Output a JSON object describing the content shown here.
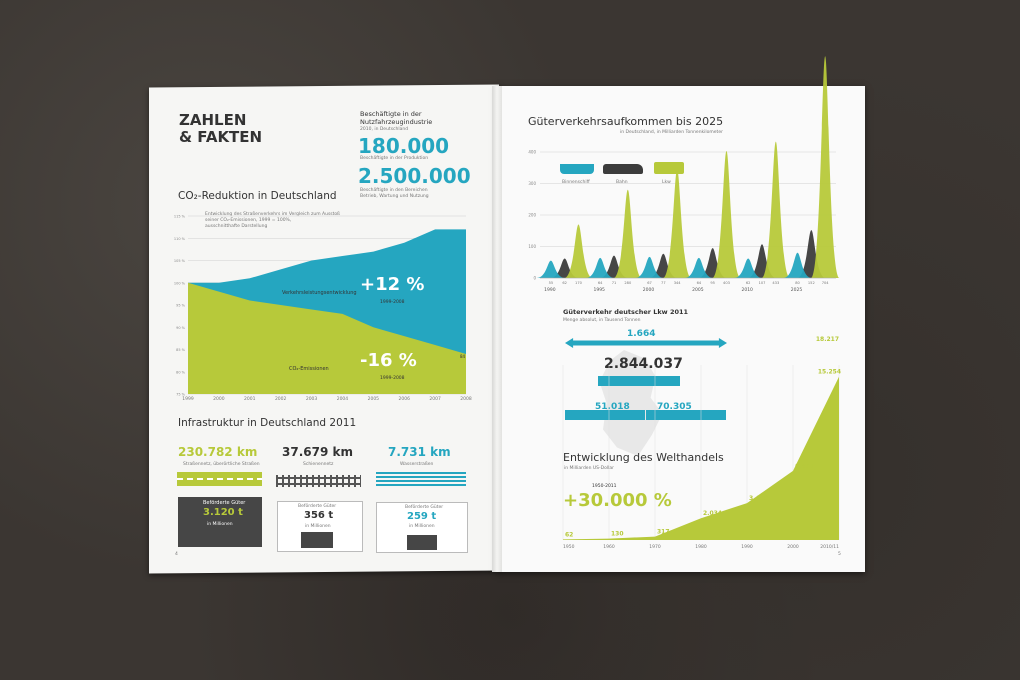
{
  "colors": {
    "green": "#b7c93a",
    "teal": "#25a6c0",
    "dark": "#3c3c3c",
    "grid": "#d0d0d0"
  },
  "left": {
    "title_line1": "ZAHLEN",
    "title_line2": "& FAKTEN",
    "employees": {
      "line1": "Beschäftigte in der",
      "line2": "Nutzfahrzeugindustrie",
      "line3": "2010, in Deutschland",
      "value_production": "180.000",
      "label_production": "Beschäftigte in der Produktion",
      "value_total": "2.500.000",
      "label_total_1": "Beschäftigte in den Bereichen",
      "label_total_2": "Betrieb, Wartung und Nutzung"
    },
    "co2": {
      "title": "CO₂-Reduktion in Deutschland",
      "note1": "Entwicklung des Straßenverkehrs im Vergleich zum Ausstoß",
      "note2": "seiner CO₂-Emissionen, 1999 = 100%,",
      "note3": "ausschnitthafte Darstellung",
      "label_traffic": "Verkehrsleistungsentwicklung",
      "label_emission": "CO₂-Emissionen",
      "big_plus": "+12 %",
      "big_plus_range": "1999-2008",
      "big_minus": "-16 %",
      "big_minus_range": "1999-2008",
      "end_value": "84"
    },
    "infra": {
      "title": "Infrastruktur in Deutschland 2011",
      "road_value": "230.782 km",
      "road_label": "Straßennetz, überörtliche Straßen",
      "rail_value": "37.679 km",
      "rail_label": "Schienennetz",
      "water_value": "7.731 km",
      "water_label": "Wasserstraßen",
      "goods_label": "Beförderte Güter",
      "unit_label": "in Millionen",
      "road_goods": "3.120 t",
      "rail_goods": "356 t",
      "water_goods": "259 t"
    },
    "page_number": "4"
  },
  "right": {
    "freight": {
      "title": "Güterverkehrsaufkommen bis 2025",
      "subtitle": "in Deutschland, in Milliarden Tonnenkilometer",
      "legend_ship": "Binnenschiff",
      "legend_rail": "Bahn",
      "legend_truck": "Lkw"
    },
    "lkw": {
      "title": "Güterverkehr deutscher Lkw 2011",
      "sub1": "Menge absolut, in Tausend Tonnen",
      "value_top": "1.664",
      "value_center": "2.844.037",
      "value_left": "51.018",
      "value_right": "70.305"
    },
    "trade": {
      "title": "Entwicklung des Welthandels",
      "subtitle": "in Milliarden US-Dollar",
      "range": "1950-2011",
      "big": "+30.000 %"
    },
    "page_number": "5"
  },
  "chart_data": [
    {
      "type": "area",
      "title": "CO₂-Reduktion in Deutschland",
      "x": [
        "1999",
        "2000",
        "2001",
        "2002",
        "2003",
        "2004",
        "2005",
        "2006",
        "2007",
        "2008"
      ],
      "series": [
        {
          "name": "Verkehrsleistungsentwicklung",
          "values": [
            100,
            100,
            101,
            103,
            105,
            106,
            107,
            109,
            112,
            112
          ]
        },
        {
          "name": "CO₂-Emissionen",
          "values": [
            100,
            98,
            96,
            95,
            94,
            93,
            90,
            88,
            86,
            84
          ]
        }
      ],
      "ylim": [
        75,
        115
      ],
      "yticks": [
        "75 %",
        "80 %",
        "85 %",
        "90 %",
        "95 %",
        "100 %",
        "105 %",
        "110 %",
        "115 %"
      ]
    },
    {
      "type": "area",
      "title": "Güterverkehrsaufkommen bis 2025",
      "x": [
        "1990",
        "1995",
        "2000",
        "2005",
        "2010",
        "2025"
      ],
      "series": [
        {
          "name": "Binnenschiff",
          "values": [
            55,
            64,
            67,
            64,
            62,
            80
          ]
        },
        {
          "name": "Bahn",
          "values": [
            62,
            71,
            77,
            95,
            107,
            152
          ]
        },
        {
          "name": "Lkw",
          "values": [
            170,
            280,
            344,
            403,
            433,
            704
          ]
        }
      ],
      "peak_labels": [
        "55",
        "62",
        "170",
        "64",
        "71",
        "280",
        "67",
        "77",
        "344",
        "64",
        "95",
        "403",
        "62",
        "107",
        "433",
        "80",
        "152",
        "704"
      ],
      "ylim": [
        0,
        400
      ],
      "yticks": [
        "0",
        "100",
        "200",
        "300",
        "400"
      ]
    },
    {
      "type": "area",
      "title": "Entwicklung des Welthandels",
      "x": [
        "1950",
        "1960",
        "1970",
        "1980",
        "1990",
        "2000",
        "2010/11"
      ],
      "values": [
        62,
        130,
        317,
        2034,
        3449,
        6456,
        15254
      ],
      "labels": [
        "62",
        "130",
        "317",
        "2.034",
        "3.449",
        "6.456",
        "15.254",
        "18.217"
      ],
      "final_value": 18217
    }
  ]
}
